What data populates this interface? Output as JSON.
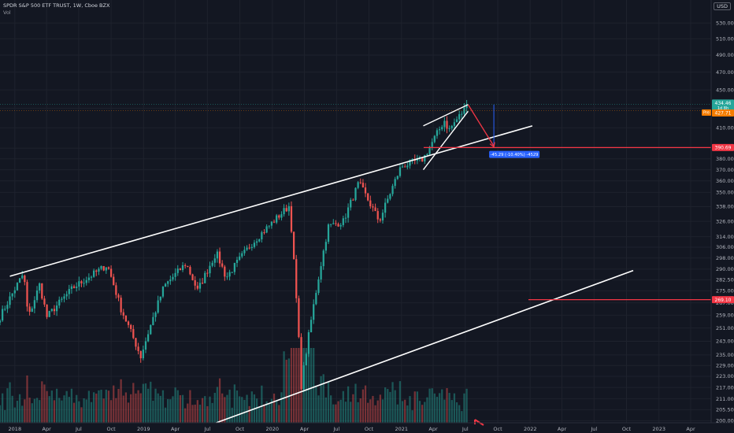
{
  "header": {
    "title": "SPDR S&P 500 ETF TRUST, 1W, Cboe BZX",
    "volume_label": "Vol",
    "currency": "USD"
  },
  "colors": {
    "background": "#131722",
    "up": "#26a69a",
    "down": "#ef5350",
    "annotation_line": "#ffffff",
    "level_line": "#f23645",
    "measure_badge": "#2962ff"
  },
  "chart_data": {
    "type": "candlestick",
    "symbol": "SPY",
    "interval": "1W",
    "y_scale": "log",
    "ylim": [
      199,
      548
    ],
    "x_range": [
      "2017-11-20",
      "2023-05-29"
    ],
    "price_ticks": [
      200.0,
      205.5,
      211.0,
      217.0,
      223.0,
      229.0,
      235.0,
      243.0,
      251.0,
      259.0,
      267.0,
      275.0,
      282.5,
      290.0,
      298.0,
      306.0,
      314.0,
      326.0,
      338.0,
      350.0,
      360.0,
      370.0,
      380.0,
      390.0,
      410.0,
      430.0,
      450.0,
      470.0,
      490.0,
      510.0,
      530.0
    ],
    "time_ticks": [
      "2018",
      "Apr",
      "Jul",
      "Oct",
      "2019",
      "Apr",
      "Jul",
      "Oct",
      "2020",
      "Apr",
      "Jul",
      "Oct",
      "2021",
      "Apr",
      "Jul",
      "Oct",
      "2022",
      "Apr",
      "Jul",
      "Oct",
      "2023",
      "Apr"
    ],
    "price_path": [
      [
        "2017-11-20",
        258
      ],
      [
        "2018-01-26",
        287
      ],
      [
        "2018-02-08",
        257
      ],
      [
        "2018-03-12",
        279
      ],
      [
        "2018-04-02",
        258
      ],
      [
        "2018-06-15",
        277
      ],
      [
        "2018-09-20",
        293
      ],
      [
        "2018-10-29",
        263
      ],
      [
        "2018-12-24",
        234
      ],
      [
        "2019-02-28",
        278
      ],
      [
        "2019-05-01",
        294
      ],
      [
        "2019-06-03",
        275
      ],
      [
        "2019-07-26",
        302
      ],
      [
        "2019-08-23",
        284
      ],
      [
        "2019-11-01",
        308
      ],
      [
        "2020-02-19",
        339
      ],
      [
        "2020-03-23",
        218
      ],
      [
        "2020-06-08",
        322
      ],
      [
        "2020-07-20",
        326
      ],
      [
        "2020-09-02",
        358
      ],
      [
        "2020-10-30",
        326
      ],
      [
        "2020-12-31",
        373
      ],
      [
        "2021-03-04",
        380
      ],
      [
        "2021-05-07",
        420
      ],
      [
        "2021-05-12",
        406
      ],
      [
        "2021-07-09",
        434
      ]
    ],
    "last_candle": {
      "date": "2021-07-09",
      "close": 434.46
    },
    "labels": {
      "last_price": "434.46",
      "countdown": "1d 8h",
      "pre_market_tag": "Pre",
      "pre_market_price": "427.71",
      "target_1": "390.69",
      "target_2": "269.10",
      "measure": "-45.29 (-10.40%) -4529"
    },
    "drawings": {
      "upper_channel": [
        [
          "2017-12-18",
          285
        ],
        [
          "2022-01-07",
          412
        ]
      ],
      "lower_channel": [
        [
          "2019-07-26",
          199
        ],
        [
          "2022-10-20",
          289
        ]
      ],
      "wedge_upper": [
        [
          "2021-03-04",
          412
        ],
        [
          "2021-07-09",
          434
        ]
      ],
      "wedge_lower": [
        [
          "2021-03-04",
          370
        ],
        [
          "2021-07-09",
          427
        ]
      ],
      "projection": [
        [
          "2021-07-09",
          434
        ],
        [
          "2021-09-20",
          392
        ]
      ],
      "measure_line": [
        [
          "2021-09-20",
          392
        ],
        [
          "2021-09-20",
          434
        ]
      ],
      "horizontal_1": {
        "from": "2021-03-05",
        "value": 390.69
      },
      "horizontal_2": {
        "from": "2021-12-27",
        "value": 269.1
      }
    }
  }
}
